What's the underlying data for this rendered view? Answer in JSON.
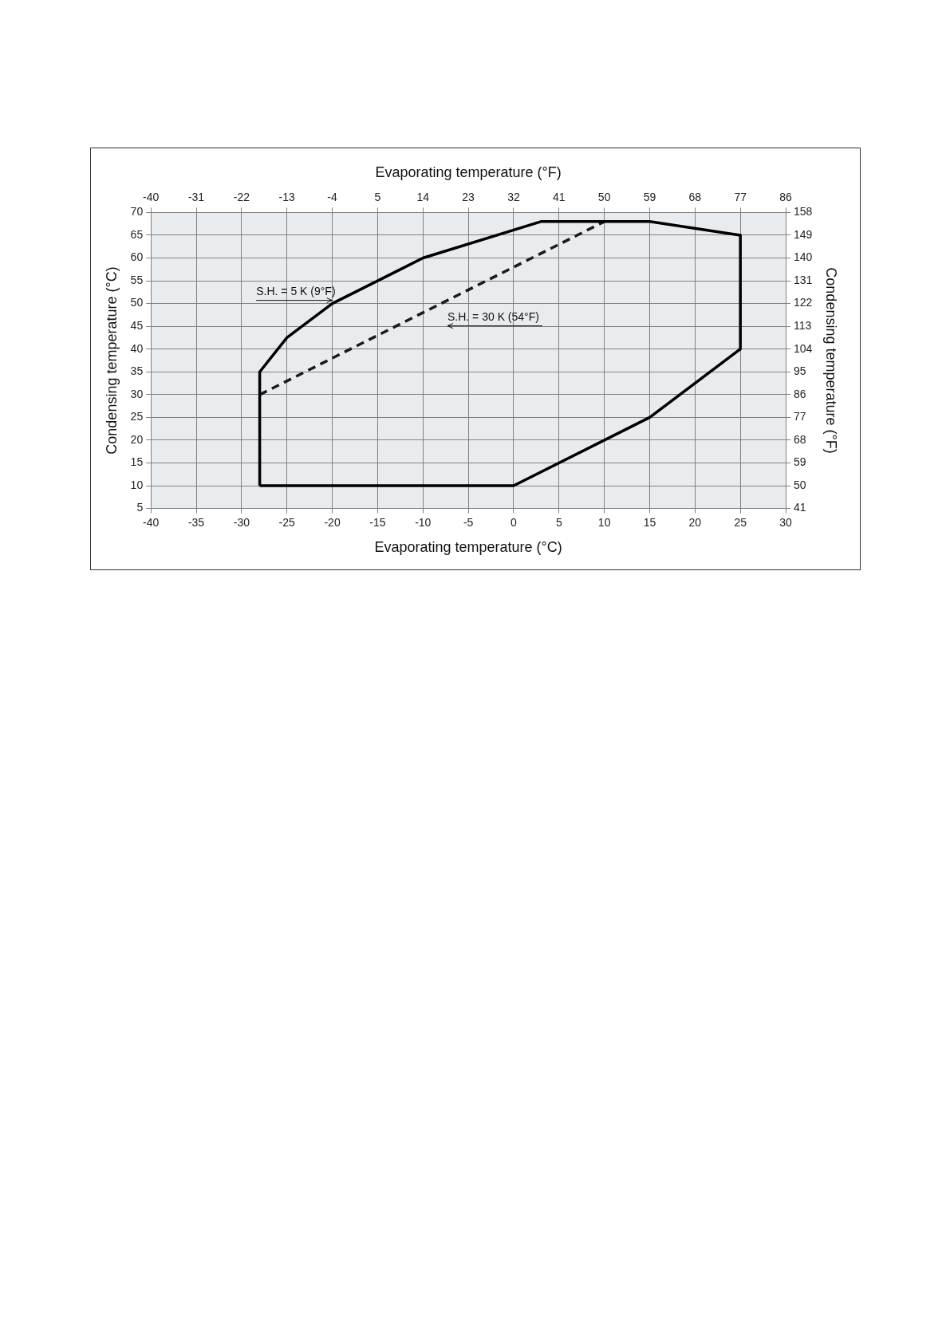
{
  "chart_data": {
    "type": "line",
    "xlabel": "Evaporating temperature (°C)",
    "x2label": "Evaporating temperature (°F)",
    "ylabel": "Condensing temperature (°C)",
    "y2label": "Condensing temperature (°F)",
    "xlim": [
      -40,
      30
    ],
    "xticks": [
      -40,
      -35,
      -30,
      -25,
      -20,
      -15,
      -10,
      -5,
      0,
      5,
      10,
      15,
      20,
      25,
      30
    ],
    "x2lim": [
      -40,
      86
    ],
    "x2ticks": [
      -40,
      -31,
      -22,
      -13,
      -4,
      5,
      14,
      23,
      32,
      41,
      50,
      59,
      68,
      77,
      86
    ],
    "ylim": [
      5,
      70
    ],
    "yticks": [
      5,
      10,
      15,
      20,
      25,
      30,
      35,
      40,
      45,
      50,
      55,
      60,
      65,
      70
    ],
    "y2lim": [
      41,
      158
    ],
    "y2ticks": [
      41,
      50,
      59,
      68,
      77,
      86,
      95,
      104,
      113,
      122,
      131,
      140,
      149,
      158
    ],
    "series": [
      {
        "color": "#1a1a1a",
        "line_style": "dashed",
        "x": [
          -28,
          10
        ],
        "values": [
          30,
          68
        ]
      },
      {
        "color": "#000000",
        "line_style": "solid",
        "x": [
          -28,
          -28,
          -25,
          -20,
          -15,
          -10,
          3,
          15,
          25,
          25
        ],
        "values": [
          10,
          35,
          42.5,
          50,
          55,
          60,
          68,
          68,
          65,
          40
        ]
      },
      {
        "color": "#000000",
        "line_style": "solid",
        "x": [
          25,
          15,
          0,
          -28
        ],
        "values": [
          40,
          25,
          10,
          10
        ]
      }
    ],
    "annotations": [
      {
        "text": "S.H. = 5 K (9°F)",
        "x": -20,
        "y": 50
      },
      {
        "text": "S.H. = 30 K (54°F)",
        "x": -8,
        "y": 50
      }
    ],
    "grid": true,
    "legend": false,
    "marker": "none"
  }
}
